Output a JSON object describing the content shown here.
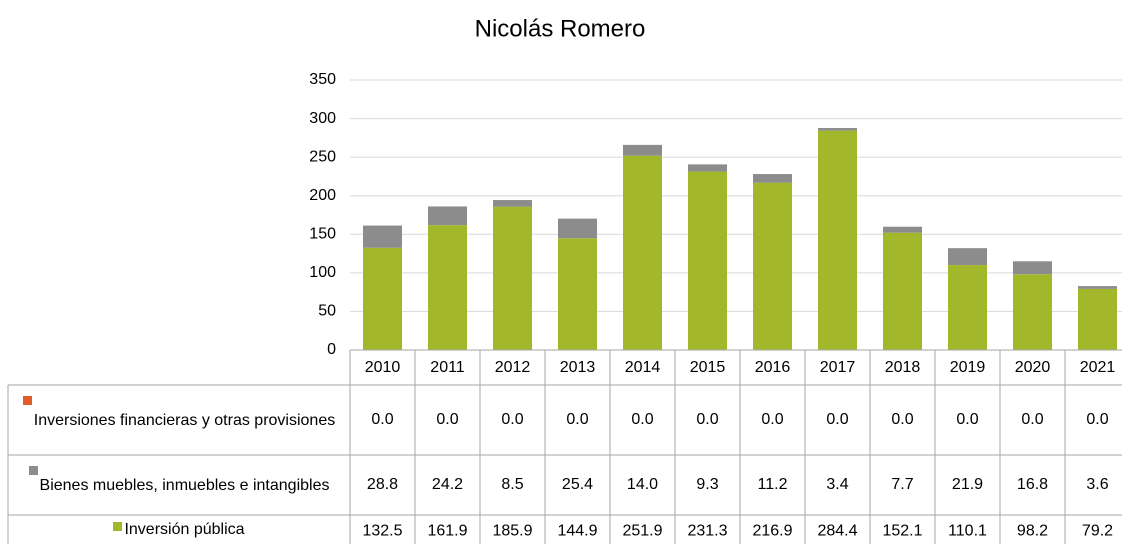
{
  "chart_data": {
    "type": "stacked_bar",
    "title": "Nicolás Romero",
    "categories": [
      "2010",
      "2011",
      "2012",
      "2013",
      "2014",
      "2015",
      "2016",
      "2017",
      "2018",
      "2019",
      "2020",
      "2021"
    ],
    "series": [
      {
        "name": "Inversiones financieras y otras provisiones",
        "color": "#e35d2a",
        "values": [
          0,
          0,
          0,
          0,
          0,
          0,
          0,
          0,
          0,
          0,
          0,
          0
        ],
        "value_labels": [
          "0.0",
          "0.0",
          "0.0",
          "0.0",
          "0.0",
          "0.0",
          "0.0",
          "0.0",
          "0.0",
          "0.0",
          "0.0",
          "0.0"
        ]
      },
      {
        "name": "Bienes muebles, inmuebles e intangibles",
        "color": "#8c8c8c",
        "values": [
          28.8,
          24.2,
          8.5,
          25.4,
          14.0,
          9.3,
          11.2,
          3.4,
          7.7,
          21.9,
          16.8,
          3.6
        ],
        "value_labels": [
          "28.8",
          "24.2",
          "8.5",
          "25.4",
          "14.0",
          "9.3",
          "11.2",
          "3.4",
          "7.7",
          "21.9",
          "16.8",
          "3.6"
        ]
      },
      {
        "name": "Inversión pública",
        "color": "#a2b82a",
        "values": [
          132.5,
          161.9,
          185.9,
          144.9,
          251.9,
          231.3,
          216.9,
          284.4,
          152.1,
          110.1,
          98.2,
          79.2
        ],
        "value_labels": [
          "132.5",
          "161.9",
          "185.9",
          "144.9",
          "251.9",
          "231.3",
          "216.9",
          "284.4",
          "152.1",
          "110.1",
          "98.2",
          "79.2"
        ]
      }
    ],
    "ylim": [
      0,
      350
    ],
    "yticks": [
      0,
      50,
      100,
      150,
      200,
      250,
      300,
      350
    ],
    "grid": true
  }
}
